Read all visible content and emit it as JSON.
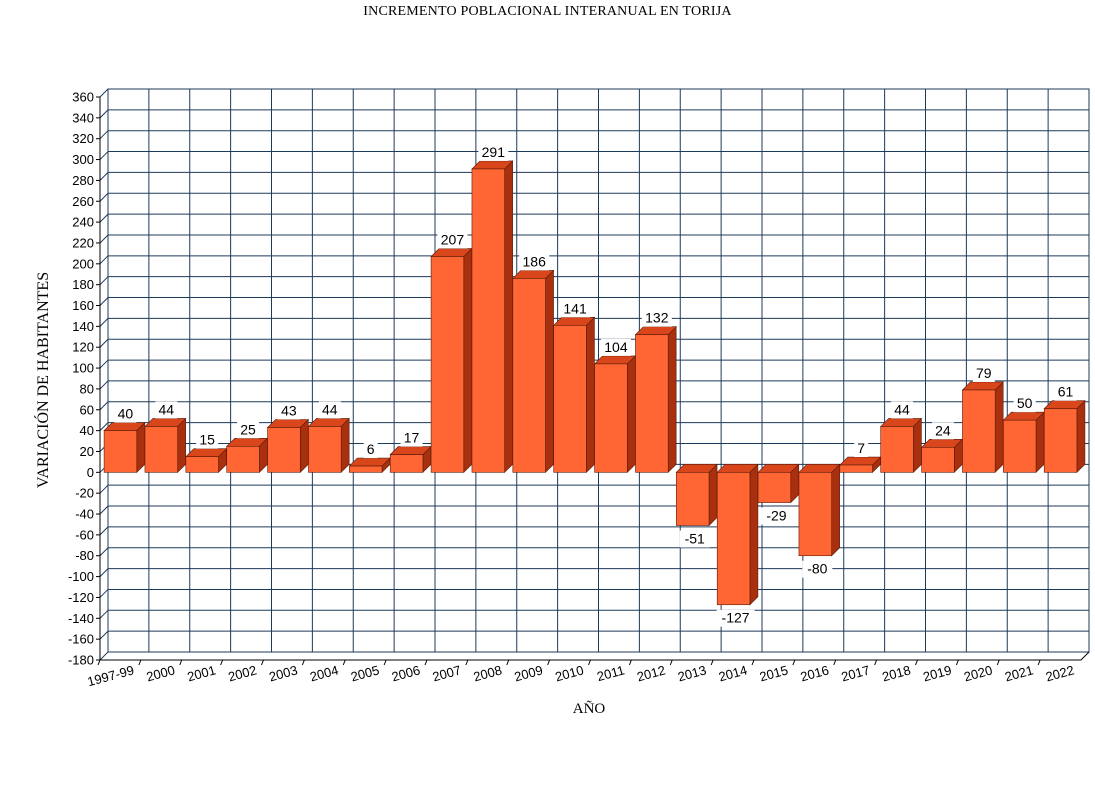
{
  "chart_data": {
    "type": "bar",
    "title": "INCREMENTO POBLACIONAL INTERANUAL EN TORIJA",
    "xlabel": "AÑO",
    "ylabel": "VARIACIÓN DE HABITANTES",
    "categories": [
      "1997-99",
      "2000",
      "2001",
      "2002",
      "2003",
      "2004",
      "2005",
      "2006",
      "2007",
      "2008",
      "2009",
      "2010",
      "2011",
      "2012",
      "2013",
      "2014",
      "2015",
      "2016",
      "2017",
      "2018",
      "2019",
      "2020",
      "2021",
      "2022"
    ],
    "values": [
      40,
      44,
      15,
      25,
      43,
      44,
      6,
      17,
      207,
      291,
      186,
      141,
      104,
      132,
      -51,
      -127,
      -29,
      -80,
      7,
      44,
      24,
      79,
      50,
      61
    ],
    "ylim": [
      -180,
      360
    ],
    "ytick_step": 20,
    "grid": true,
    "bar_color": "#ff6633",
    "bar_top_color": "#d9461c",
    "bar_side_color": "#a8300f",
    "grid_color": "#1c3a5a"
  }
}
